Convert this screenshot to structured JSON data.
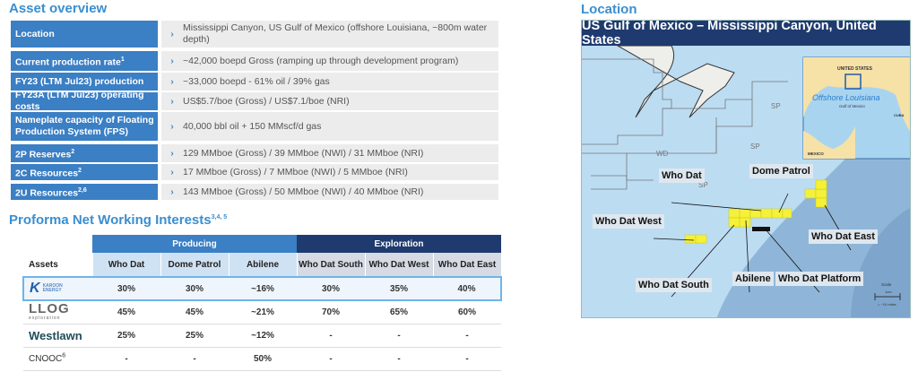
{
  "overview": {
    "title": "Asset overview",
    "rows": [
      {
        "label": "Location",
        "sup": "",
        "value": "Mississippi Canyon, US Gulf of Mexico (offshore Louisiana, ~800m water depth)"
      },
      {
        "label": "Current production rate",
        "sup": "1",
        "value": "~42,000 boepd Gross (ramping up through development program)"
      },
      {
        "label": "FY23 (LTM Jul23) production",
        "sup": "",
        "value": "~33,000 boepd - 61% oil / 39% gas"
      },
      {
        "label": "FY23A (LTM Jul23) operating costs",
        "sup": "",
        "value": "US$5.7/boe (Gross) / US$7.1/boe (NRI)"
      },
      {
        "label": "Nameplate capacity of Floating Production System (FPS)",
        "sup": "",
        "value": "40,000 bbl oil + 150 MMscf/d gas"
      },
      {
        "label": "2P Reserves",
        "sup": "2",
        "value": "129 MMboe (Gross) / 39 MMboe (NWI) / 31 MMboe (NRI)"
      },
      {
        "label": "2C Resources",
        "sup": "2",
        "value": "17 MMboe (Gross) / 7 MMboe (NWI) / 5 MMboe (NRI)"
      },
      {
        "label": "2U Resources",
        "sup": "2,6",
        "value": "143 MMboe (Gross) / 50 MMboe (NWI) / 40 MMboe (NRI)"
      }
    ]
  },
  "interests": {
    "title": "Proforma Net Working Interests",
    "sup": "3,4, 5",
    "group_producing": "Producing",
    "group_exploration": "Exploration",
    "headers": [
      "Assets",
      "Who Dat",
      "Dome Patrol",
      "Abilene",
      "Who Dat South",
      "Who Dat West",
      "Who Dat East"
    ],
    "rows": [
      {
        "company": "KAROON ENERGY",
        "values": [
          "30%",
          "30%",
          "~16%",
          "30%",
          "35%",
          "40%"
        ]
      },
      {
        "company": "LLOG exploration",
        "values": [
          "45%",
          "45%",
          "~21%",
          "70%",
          "65%",
          "60%"
        ]
      },
      {
        "company": "Westlawn",
        "values": [
          "25%",
          "25%",
          "~12%",
          "-",
          "-",
          "-"
        ]
      },
      {
        "company": "CNOOC",
        "sup": "6",
        "values": [
          "-",
          "-",
          "50%",
          "-",
          "-",
          "-"
        ]
      }
    ]
  },
  "location": {
    "title": "Location",
    "map_title": "US Gulf of Mexico – Mississippi Canyon, United States",
    "labels": {
      "who_dat": "Who Dat",
      "dome_patrol": "Dome Patrol",
      "who_dat_west": "Who Dat West",
      "who_dat_east": "Who Dat East",
      "who_dat_south": "Who Dat South",
      "abilene": "Abilene",
      "platform": "Who Dat Platform"
    },
    "area_codes": [
      "SP",
      "SP",
      "WD",
      "SP",
      "WD"
    ],
    "inset": {
      "country": "UNITED STATES",
      "highlight": "Offshore Louisiana",
      "sea": "Gulf of Mexico",
      "cuba": "CUBA",
      "mexico": "MEXICO"
    },
    "scale": {
      "title": "Scale",
      "unit": "1cm",
      "distance": "= ~10 miles"
    }
  },
  "colors": {
    "accent": "#3b7fc4",
    "dark": "#1f3a6e",
    "block": "#f5f03a"
  }
}
